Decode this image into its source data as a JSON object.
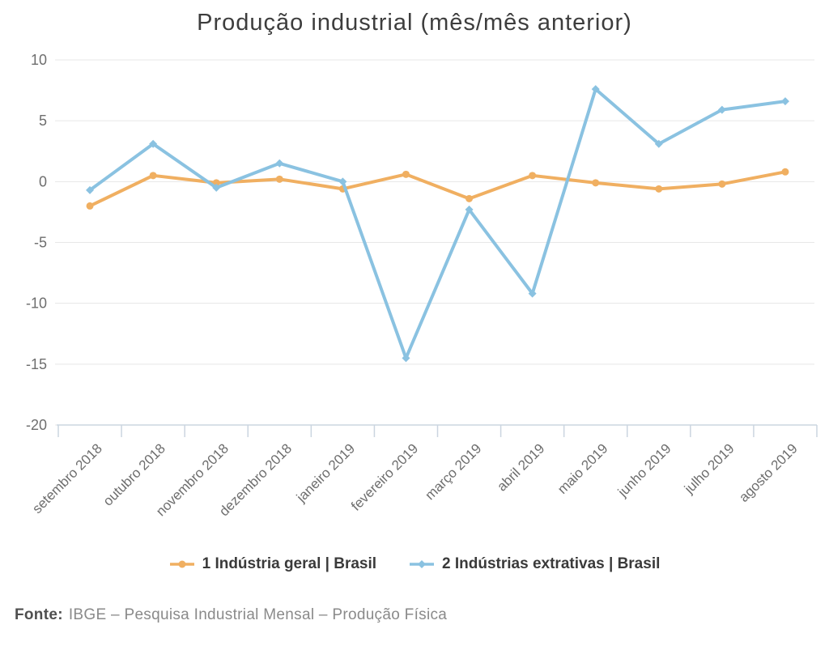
{
  "chart_data": {
    "type": "line",
    "title": "Produção industrial (mês/mês anterior)",
    "categories": [
      "setembro 2018",
      "outubro 2018",
      "novembro 2018",
      "dezembro 2018",
      "janeiro 2019",
      "fevereiro 2019",
      "março 2019",
      "abril 2019",
      "maio 2019",
      "junho 2019",
      "julho 2019",
      "agosto 2019"
    ],
    "series": [
      {
        "name": "1 Indústria geral | Brasil",
        "color": "#F0AF61",
        "symbol": "circle",
        "values": [
          -2.0,
          0.5,
          -0.1,
          0.2,
          -0.6,
          0.6,
          -1.4,
          0.5,
          -0.1,
          -0.6,
          -0.2,
          0.8
        ]
      },
      {
        "name": "2 Indústrias extrativas | Brasil",
        "color": "#8AC2E1",
        "symbol": "diamond",
        "values": [
          -0.7,
          3.1,
          -0.5,
          1.5,
          0.0,
          -14.5,
          -2.3,
          -9.2,
          7.6,
          3.1,
          5.9,
          6.6
        ]
      }
    ],
    "xlabel": "",
    "ylabel": "",
    "ylim": [
      -20,
      10
    ],
    "yticks": [
      10,
      5,
      0,
      -5,
      -10,
      -15,
      -20
    ],
    "grid": "horizontal-only",
    "legend_position": "bottom-center",
    "colors": {
      "grid": "#E7E7E7",
      "axis": "#CBD5E0",
      "axis_text": "#6E6E6E",
      "title_text": "#3D3D3D",
      "legend_text": "#3A3A3A"
    }
  },
  "source": {
    "label": "Fonte:",
    "text": "IBGE – Pesquisa Industrial Mensal – Produção Física"
  }
}
